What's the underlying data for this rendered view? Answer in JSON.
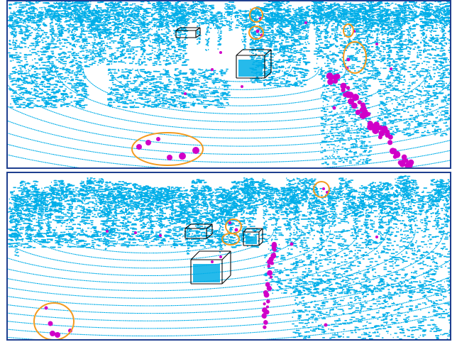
{
  "figure": {
    "background": "#ffffff",
    "panel_border_color": "#1f3f8f",
    "point_color": "#00aee8",
    "outlier_color": "#d000c8",
    "highlight_color": "#f39a1e",
    "box_color": "#000000"
  },
  "panels": [
    {
      "id": "top",
      "view": "lidar-point-cloud-view-1"
    },
    {
      "id": "bottom",
      "view": "lidar-point-cloud-view-2"
    }
  ]
}
